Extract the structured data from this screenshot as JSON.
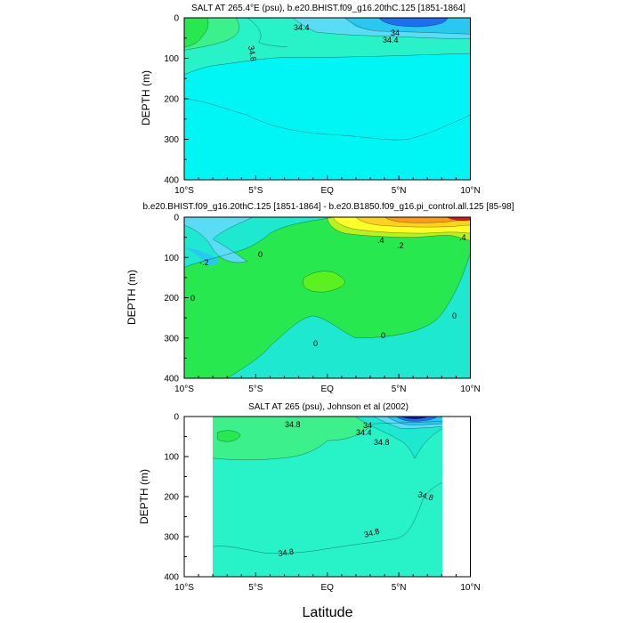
{
  "figure": {
    "xlabel": "Latitude",
    "colors": {
      "cyan": "#00f5f5",
      "aqua": "#1ee8d0",
      "turquoise": "#28f2c8",
      "mint": "#3cf08c",
      "green": "#28e850",
      "lime": "#5cf020",
      "yellowgreen": "#b8f020",
      "yellow": "#ffff28",
      "gold": "#ffd21e",
      "orange": "#ff9a14",
      "orangered": "#ff6414",
      "red": "#e61414",
      "skyblue": "#28c8f0",
      "lightblue": "#5adcf5",
      "blue": "#1e6ef0",
      "navy": "#1414b4",
      "line": "#000000"
    }
  },
  "chart_data": [
    {
      "type": "contour",
      "title": "SALT AT 265.4°E (psu), b.e20.BHIST.f09_g16.20thC.125 [1851-1864]",
      "ylabel": "DEPTH (m)",
      "xlim": [
        -10,
        10
      ],
      "ylim": [
        400,
        0
      ],
      "x_ticks": [
        "10°S",
        "5°S",
        "EQ",
        "5°N",
        "10°N"
      ],
      "y_ticks": [
        "0",
        "100",
        "200",
        "300",
        "400"
      ],
      "contour_labels": [
        "34.4",
        "34.8",
        "34",
        "34.4"
      ]
    },
    {
      "type": "contour",
      "title": "b.e20.BHIST.f09_g16.20thC.125 [1851-1864] - b.e20.B1850.f09_g16.pi_control.all.125 [85-98]",
      "ylabel": "DEPTH (m)",
      "xlim": [
        -10,
        10
      ],
      "ylim": [
        400,
        0
      ],
      "x_ticks": [
        "10°S",
        "5°S",
        "EQ",
        "5°N",
        "10°N"
      ],
      "y_ticks": [
        "0",
        "100",
        "200",
        "300",
        "400"
      ],
      "contour_labels": [
        "-.2",
        "0",
        "0",
        "0",
        "0",
        "0",
        ".4",
        ".2",
        ".4"
      ]
    },
    {
      "type": "contour",
      "title": "SALT AT 265 (psu), Johnson et al (2002)",
      "ylabel": "DEPTH (m)",
      "xlim": [
        -10,
        10
      ],
      "ylim": [
        400,
        0
      ],
      "x_ticks": [
        "10°S",
        "5°S",
        "EQ",
        "5°N",
        "10°N"
      ],
      "y_ticks": [
        "0",
        "100",
        "200",
        "300",
        "400"
      ],
      "data_xrange": [
        -8,
        8
      ],
      "contour_labels": [
        "34.8",
        "34",
        "34.4",
        "34.8",
        "34.8",
        "34.8",
        "34.8"
      ]
    }
  ]
}
